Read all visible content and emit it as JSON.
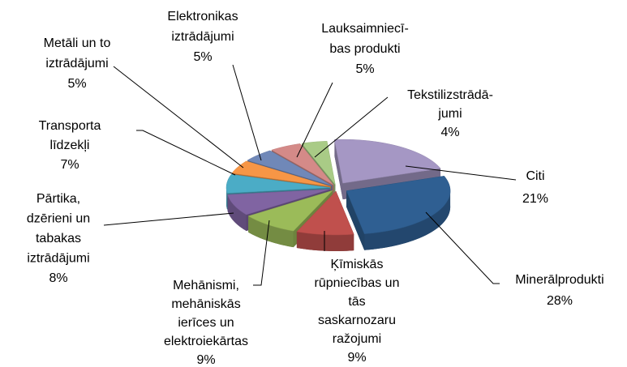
{
  "chart_data": {
    "type": "pie",
    "categories": [
      "Citi",
      "Minerālprodukti",
      "Ķīmiskās\nrūpniecības un\ntās\nsaskarnozaru\nražojumi",
      "Mehānismi,\nmehāniskās\nierīces un\nelektroiekārtas",
      "Pārtika,\ndzērieni un\ntabakas\niztrādājumi",
      "Transporta\nlīdzekļi",
      "Metāli un to\niztrādājumi",
      "Elektronikas\niztrādājumi",
      "Lauksaimniecī-\nbas produkti",
      "Tekstilizstrādā-\njumi"
    ],
    "values": [
      21,
      28,
      9,
      9,
      8,
      7,
      5,
      5,
      5,
      4
    ],
    "value_labels": [
      "21%",
      "28%",
      "9%",
      "9%",
      "8%",
      "7%",
      "5%",
      "5%",
      "5%",
      "4%"
    ],
    "colors": [
      "#a597c4",
      "#2f5f92",
      "#c0504d",
      "#9bbb59",
      "#8064a2",
      "#4bacc6",
      "#f79646",
      "#7088b8",
      "#d48a88",
      "#a9cb86"
    ]
  }
}
